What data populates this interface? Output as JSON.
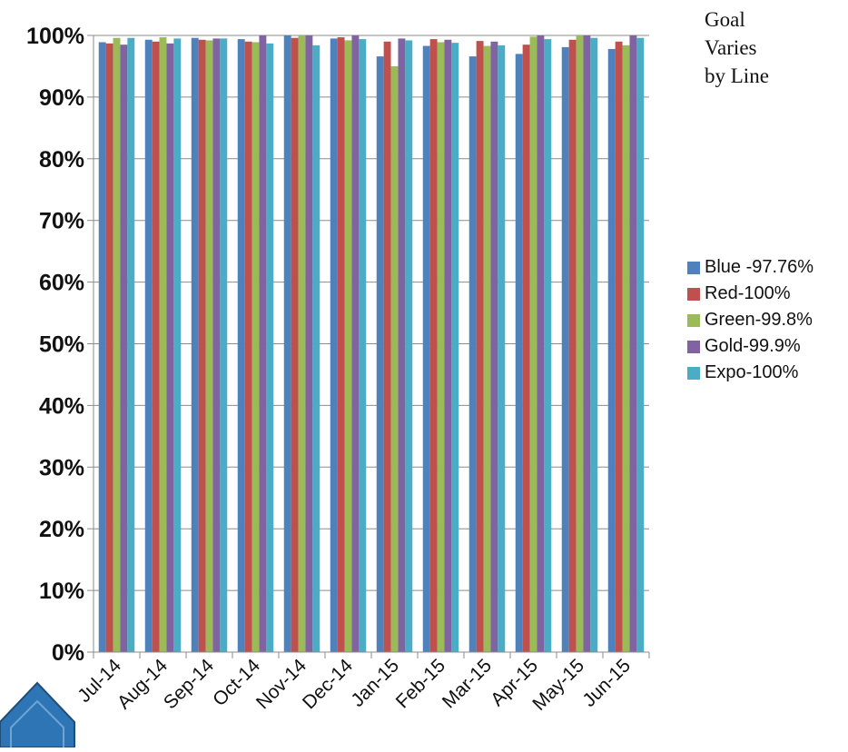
{
  "goal_note": {
    "line1": "Goal",
    "line2": "Varies",
    "line3": "by Line"
  },
  "chart_data": {
    "type": "bar",
    "title": "",
    "xlabel": "",
    "ylabel": "",
    "ylim": [
      0,
      100
    ],
    "y_ticks": [
      "0%",
      "10%",
      "20%",
      "30%",
      "40%",
      "50%",
      "60%",
      "70%",
      "80%",
      "90%",
      "100%"
    ],
    "grid": true,
    "legend_position": "right",
    "categories": [
      "Jul-14",
      "Aug-14",
      "Sep-14",
      "Oct-14",
      "Nov-14",
      "Dec-14",
      "Jan-15",
      "Feb-15",
      "Mar-15",
      "Apr-15",
      "May-15",
      "Jun-15"
    ],
    "series": [
      {
        "name": "Blue -97.76%",
        "color": "#4F81BD",
        "values": [
          98.9,
          99.3,
          99.6,
          99.4,
          100.0,
          99.5,
          96.6,
          98.3,
          96.6,
          97.0,
          98.1,
          97.8
        ]
      },
      {
        "name": "Red-100%",
        "color": "#C0504D",
        "values": [
          98.7,
          99.0,
          99.3,
          99.0,
          99.6,
          99.7,
          99.0,
          99.4,
          99.1,
          98.5,
          99.3,
          99.0
        ]
      },
      {
        "name": "Green-99.8%",
        "color": "#9BBB59",
        "values": [
          99.6,
          99.7,
          99.2,
          98.9,
          100.0,
          99.2,
          95.0,
          98.9,
          98.3,
          99.8,
          100.0,
          98.4
        ]
      },
      {
        "name": "Gold-99.9%",
        "color": "#8064A2",
        "values": [
          98.5,
          98.7,
          99.5,
          100.0,
          100.0,
          100.0,
          99.5,
          99.3,
          99.0,
          100.0,
          100.0,
          100.0
        ]
      },
      {
        "name": "Expo-100%",
        "color": "#4BACC6",
        "values": [
          99.6,
          99.5,
          99.5,
          98.7,
          98.4,
          99.4,
          99.2,
          98.8,
          98.4,
          99.4,
          99.6,
          99.6
        ]
      }
    ]
  },
  "decoration": {
    "corner_shape_color": "#2E75B6"
  }
}
